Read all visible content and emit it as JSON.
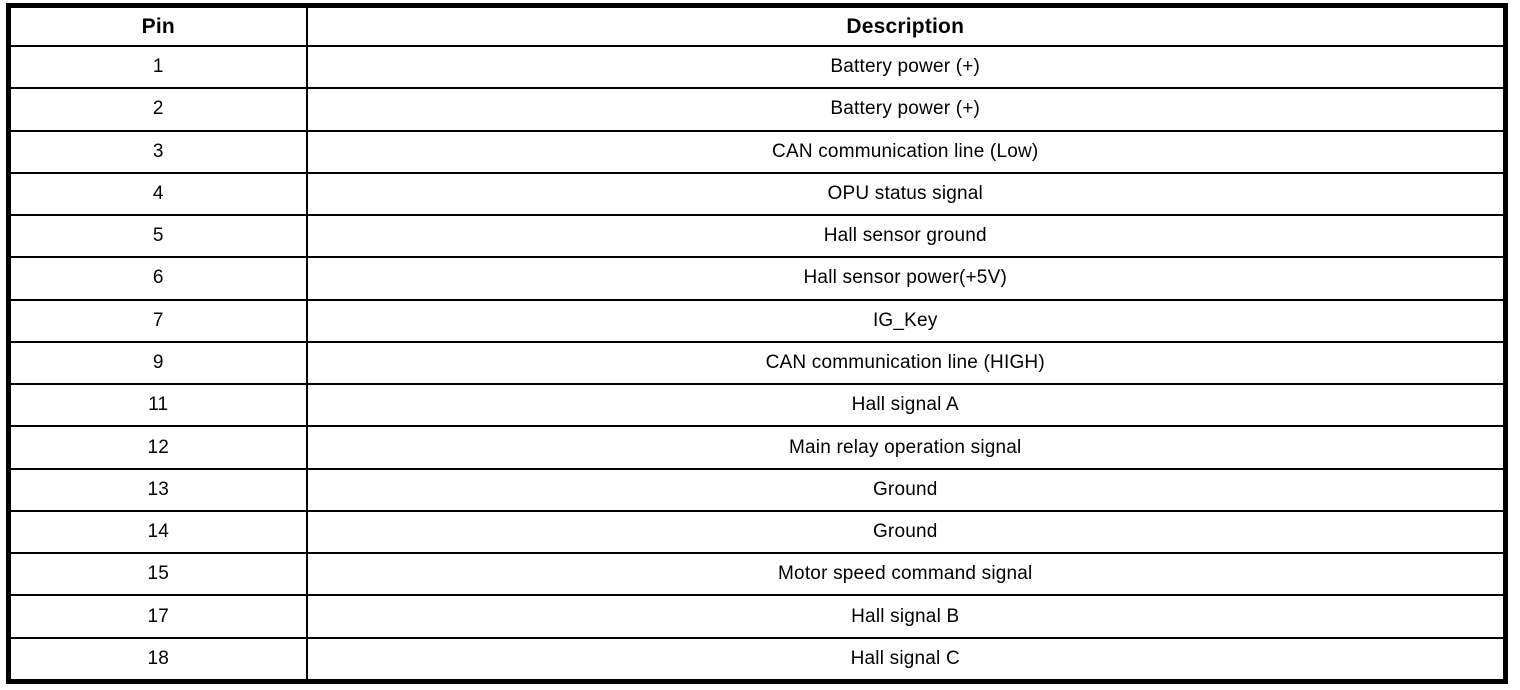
{
  "colors": {
    "background": "#ffffff",
    "border": "#000000",
    "text": "#000000"
  },
  "table": {
    "columns": [
      "Pin",
      "Description"
    ],
    "rows": [
      {
        "pin": "1",
        "description": "Battery power (+)"
      },
      {
        "pin": "2",
        "description": "Battery power (+)"
      },
      {
        "pin": "3",
        "description": "CAN communication line (Low)"
      },
      {
        "pin": "4",
        "description": "OPU status signal"
      },
      {
        "pin": "5",
        "description": "Hall sensor ground"
      },
      {
        "pin": "6",
        "description": "Hall sensor power(+5V)"
      },
      {
        "pin": "7",
        "description": "IG_Key"
      },
      {
        "pin": "9",
        "description": "CAN communication line (HIGH)"
      },
      {
        "pin": "11",
        "description": "Hall signal A"
      },
      {
        "pin": "12",
        "description": "Main relay operation signal"
      },
      {
        "pin": "13",
        "description": "Ground"
      },
      {
        "pin": "14",
        "description": "Ground"
      },
      {
        "pin": "15",
        "description": "Motor speed command signal"
      },
      {
        "pin": "17",
        "description": "Hall signal B"
      },
      {
        "pin": "18",
        "description": "Hall signal C"
      }
    ]
  }
}
